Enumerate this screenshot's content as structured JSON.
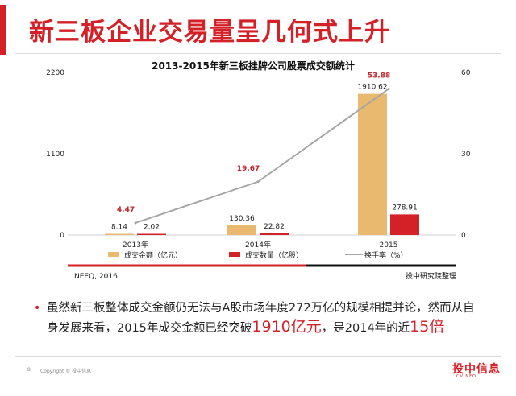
{
  "slide": {
    "title": "新三板企业交易量呈几何式上升",
    "footer_left": "NEEQ, 2016",
    "footer_right": "投中研究院整理",
    "page_number": "8",
    "copyright": "Copyright © 投中信息",
    "logo_text": "投中信息",
    "logo_subtext": "CVINFO",
    "bullet": {
      "part1": "虽然新三板整体成交金额仍无法与A股市场年度272万亿的规模相提并论，然而从自身发展来看，2015年成交金额已经突破",
      "highlight1": "1910亿元",
      "part2": "，是2014年的近",
      "highlight2": "15倍"
    }
  },
  "chart_data": {
    "type": "bar",
    "title": "2013-2015年新三板挂牌公司股票成交额统计",
    "categories": [
      "2013年",
      "2014年",
      "2015"
    ],
    "y_left": {
      "ticks": [
        "0",
        "1100",
        "2200"
      ],
      "range": [
        0,
        2200
      ]
    },
    "y_right": {
      "ticks": [
        "0",
        "30",
        "60"
      ],
      "range": [
        0,
        60
      ]
    },
    "series": [
      {
        "name": "成交金额（亿元）",
        "type": "bar",
        "axis": "left",
        "color": "#e8b96e",
        "values": [
          8.14,
          130.36,
          1910.62
        ],
        "labels": [
          "8.14",
          "130.36",
          "1910.62"
        ]
      },
      {
        "name": "成交数量（亿股）",
        "type": "bar",
        "axis": "left",
        "color": "#d42027",
        "values": [
          2.02,
          22.82,
          278.91
        ],
        "labels": [
          "2.02",
          "22.82",
          "278.91"
        ]
      },
      {
        "name": "换手率（%）",
        "type": "line",
        "axis": "right",
        "color": "#a6a6a6",
        "values": [
          4.47,
          19.67,
          53.88
        ],
        "labels": [
          "4.47",
          "19.67",
          "53.88"
        ]
      }
    ],
    "grid": false,
    "legend": "bottom"
  }
}
